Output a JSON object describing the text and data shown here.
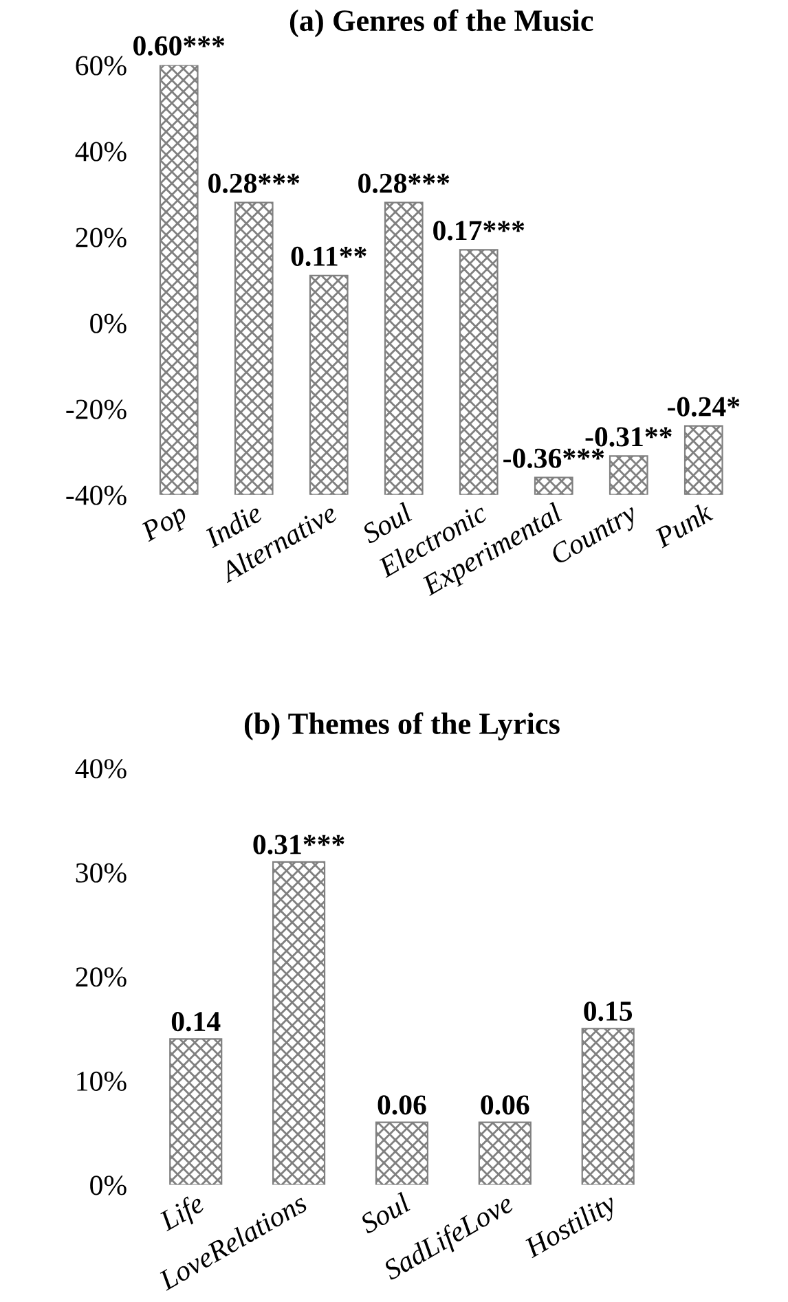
{
  "chart_data": [
    {
      "type": "bar",
      "title": "(a) Genres of the Music",
      "categories": [
        "Pop",
        "Indie",
        "Alternative",
        "Soul",
        "Electronic",
        "Experimental",
        "Country",
        "Punk"
      ],
      "base": [
        -0.4,
        -0.4,
        -0.4,
        -0.4,
        -0.4,
        -0.4,
        -0.4,
        -0.4
      ],
      "values": [
        1.0,
        0.68,
        0.51,
        0.68,
        0.57,
        0.04,
        0.09,
        0.16
      ],
      "annotations": [
        {
          "text": "0.60***",
          "x": "Pop",
          "y": 0.6
        },
        {
          "text": "0.28***",
          "x": "Indie",
          "y": 0.28
        },
        {
          "text": "0.11**",
          "x": "Alternative",
          "y": 0.11
        },
        {
          "text": "0.28***",
          "x": "Soul",
          "y": 0.28
        },
        {
          "text": "0.17***",
          "x": "Electronic",
          "y": 0.17
        },
        {
          "text": "-0.36***",
          "x": "Experimental",
          "y": -0.36
        },
        {
          "text": "-0.31**",
          "x": "Country",
          "y": -0.31
        },
        {
          "text": "-0.24*",
          "x": "Punk",
          "y": -0.24
        }
      ],
      "color": "#808080",
      "ylim": [
        -0.4,
        0.6
      ],
      "yticks": [
        {
          "value": -0.4,
          "label": "-40%"
        },
        {
          "value": -0.2,
          "label": "-20%"
        },
        {
          "value": 0,
          "label": "0%"
        },
        {
          "value": 0.2,
          "label": "20%"
        },
        {
          "value": 0.4,
          "label": "40%"
        },
        {
          "value": 0.6,
          "label": "60%"
        }
      ]
    },
    {
      "type": "bar",
      "title": "(b) Themes of the Lyrics",
      "categories": [
        "Life",
        "LoveRelations",
        "Soul",
        "SadLifeLove",
        "Hostility"
      ],
      "values": [
        0.14,
        0.31,
        0.06,
        0.06,
        0.15
      ],
      "value_labels": [
        "0.14",
        "0.31***",
        "0.06",
        "0.06",
        "0.15"
      ],
      "color": "#808080",
      "ylim": [
        0,
        0.4
      ],
      "yticks": [
        {
          "value": 0,
          "label": "0%"
        },
        {
          "value": 0.1,
          "label": "10%"
        },
        {
          "value": 0.2,
          "label": "20%"
        },
        {
          "value": 0.3,
          "label": "30%"
        },
        {
          "value": 0.4,
          "label": "40%"
        }
      ]
    }
  ]
}
